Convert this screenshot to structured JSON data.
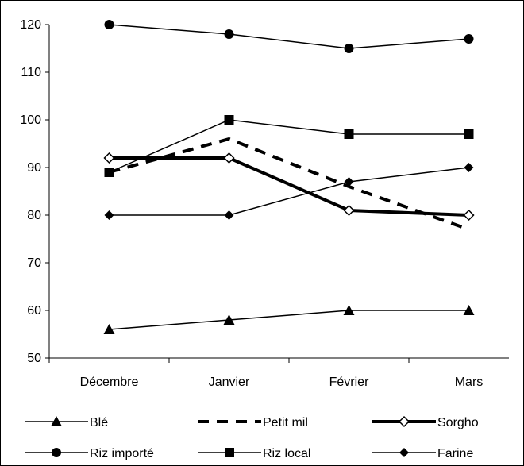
{
  "chart_data": {
    "type": "line",
    "title": "",
    "xlabel": "",
    "ylabel": "",
    "categories": [
      "Décembre",
      "Janvier",
      "Février",
      "Mars"
    ],
    "ylim": [
      50,
      120
    ],
    "yticks": [
      50,
      60,
      70,
      80,
      90,
      100,
      110,
      120
    ],
    "grid": false,
    "legend_position": "bottom",
    "series": [
      {
        "name": "Blé",
        "values": [
          56,
          58,
          60,
          60
        ],
        "marker": "triangle",
        "line": "solid",
        "weight": "thin",
        "color": "#000000"
      },
      {
        "name": "Petit mil",
        "values": [
          89,
          96,
          86,
          77
        ],
        "marker": "none",
        "line": "dashed",
        "weight": "thick",
        "color": "#000000"
      },
      {
        "name": "Sorgho",
        "values": [
          92,
          92,
          81,
          80
        ],
        "marker": "diamond-open",
        "line": "solid",
        "weight": "thick",
        "color": "#000000"
      },
      {
        "name": "Riz importé",
        "values": [
          120,
          118,
          115,
          117
        ],
        "marker": "circle",
        "line": "solid",
        "weight": "thin",
        "color": "#000000"
      },
      {
        "name": "Riz local",
        "values": [
          89,
          100,
          97,
          97
        ],
        "marker": "square",
        "line": "solid",
        "weight": "thin",
        "color": "#000000"
      },
      {
        "name": "Farine",
        "values": [
          80,
          80,
          87,
          90
        ],
        "marker": "diamond",
        "line": "solid",
        "weight": "thin",
        "color": "#000000"
      }
    ]
  }
}
